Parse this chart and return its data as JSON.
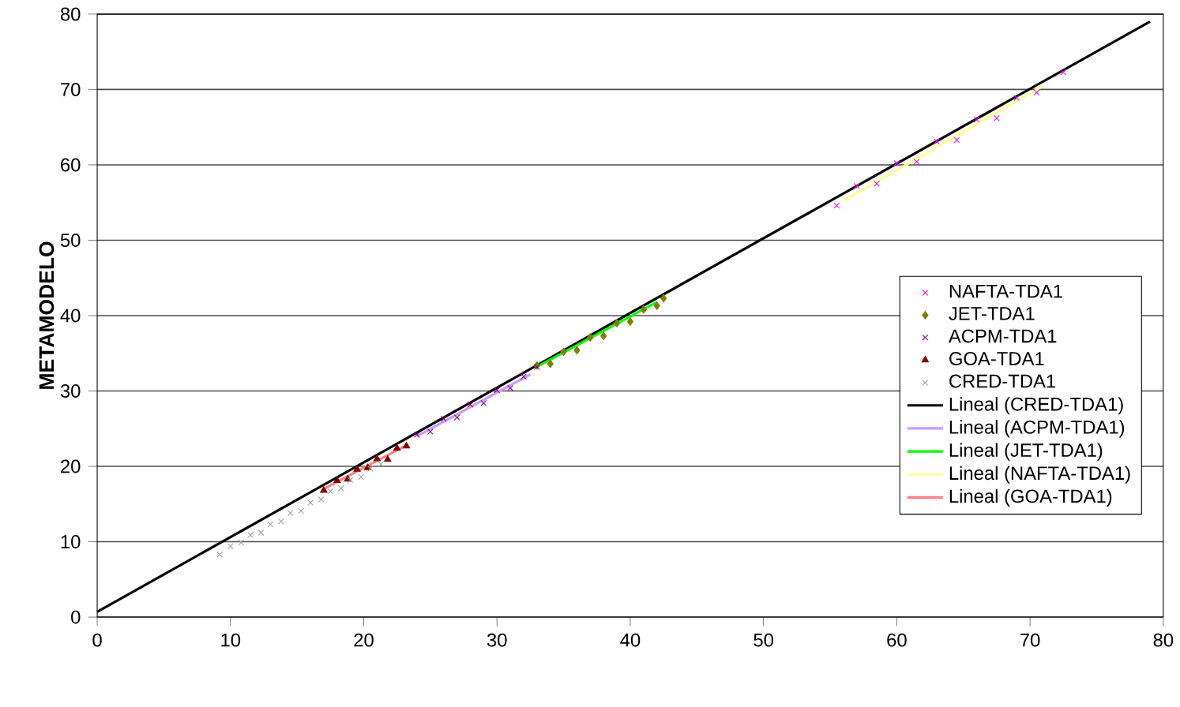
{
  "chart_data": {
    "type": "scatter",
    "ylabel": "METAMODELO",
    "xlim": [
      0,
      80
    ],
    "ylim": [
      0,
      80
    ],
    "xticks": [
      0,
      10,
      20,
      30,
      40,
      50,
      60,
      70,
      80
    ],
    "yticks": [
      0,
      10,
      20,
      30,
      40,
      50,
      60,
      70,
      80
    ],
    "grid": "y",
    "legend": "bottom right",
    "series": [
      {
        "name": "NAFTA-TDA1",
        "marker": "cross",
        "color": "#ff00ff",
        "x": [
          55.5,
          57,
          58.5,
          60,
          61.5,
          63,
          64.5,
          66,
          67.5,
          69,
          70.5,
          72.5
        ],
        "values": [
          54.6,
          57.2,
          57.5,
          60.2,
          60.4,
          63.1,
          63.3,
          66,
          66.2,
          68.9,
          69.6,
          72.3
        ]
      },
      {
        "name": "JET-TDA1",
        "marker": "diamond",
        "color": "#808000",
        "x": [
          33,
          34,
          35,
          36,
          37,
          38,
          39,
          40,
          41,
          42,
          42.5
        ],
        "values": [
          33.4,
          33.6,
          35.2,
          35.4,
          37.1,
          37.3,
          39,
          39.2,
          40.8,
          41.3,
          42.3
        ]
      },
      {
        "name": "ACPM-TDA1",
        "marker": "cross",
        "color": "#800080",
        "x": [
          24,
          25,
          26,
          27,
          28,
          29,
          30,
          31,
          32,
          33
        ],
        "values": [
          24.2,
          24.6,
          26.3,
          26.5,
          28.2,
          28.4,
          30.1,
          30.4,
          31.9,
          33.2
        ]
      },
      {
        "name": "GOA-TDA1",
        "marker": "triangle",
        "color": "#800000",
        "x": [
          17,
          18,
          18.8,
          19.5,
          20.3,
          21,
          21.8,
          22.5,
          23.2
        ],
        "values": [
          16.8,
          18.1,
          18.3,
          19.6,
          19.8,
          21,
          20.9,
          22.4,
          22.7
        ]
      },
      {
        "name": "CRED-TDA1",
        "marker": "cross",
        "color": "#a0a0a0",
        "x": [
          9.2,
          10,
          10.8,
          11.5,
          12.3,
          13,
          13.8,
          14.5,
          15.3,
          16,
          16.8,
          17.5,
          18.3,
          19,
          19.8,
          20.5,
          21.3
        ],
        "values": [
          8.3,
          9.4,
          9.9,
          10.9,
          11.2,
          12.3,
          12.7,
          13.8,
          14.1,
          15.2,
          15.6,
          16.7,
          17.1,
          18.2,
          18.6,
          19.7,
          20.3
        ]
      },
      {
        "name": "Lineal (CRED-TDA1)",
        "type": "line",
        "color": "#000000",
        "x": [
          0,
          79
        ],
        "values": [
          0.7,
          79
        ]
      },
      {
        "name": "Lineal (ACPM-TDA1)",
        "type": "line",
        "color": "#cc99ff",
        "x": [
          24,
          32.5
        ],
        "values": [
          24,
          32.2
        ]
      },
      {
        "name": "Lineal (JET-TDA1)",
        "type": "line",
        "color": "#00ff00",
        "x": [
          33,
          42
        ],
        "values": [
          33.2,
          41.8
        ]
      },
      {
        "name": "Lineal (NAFTA-TDA1)",
        "type": "line",
        "color": "#ffff99",
        "x": [
          56,
          71
        ],
        "values": [
          55.2,
          70.5
        ]
      },
      {
        "name": "Lineal (GOA-TDA1)",
        "type": "line",
        "color": "#ff8080",
        "x": [
          17,
          23
        ],
        "values": [
          17,
          22.6
        ]
      }
    ]
  }
}
